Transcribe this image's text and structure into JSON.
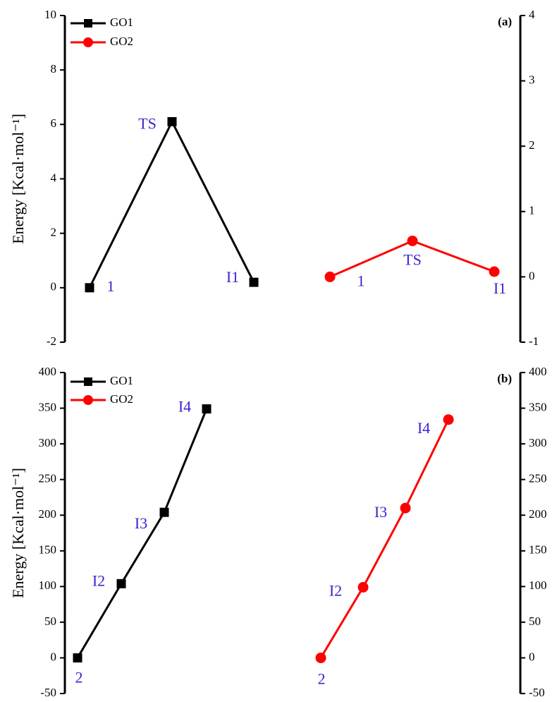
{
  "chart_data": [
    {
      "type": "line",
      "panel_label": "(a)",
      "ylabel": "Energy [Kcal·mol⁻¹]",
      "categories": [
        null,
        null,
        null,
        null,
        null,
        null
      ],
      "series": [
        {
          "name": "GO1",
          "color": "#000000",
          "marker": "square",
          "values": [
            0,
            6.1,
            0.2,
            null,
            null,
            null
          ],
          "point_labels": [
            "1",
            "TS",
            "I1",
            null,
            null,
            null
          ]
        },
        {
          "name": "GO2",
          "color": "#ff0000",
          "marker": "circle",
          "axis": "y2",
          "values": [
            null,
            null,
            null,
            0,
            0.55,
            0.08
          ],
          "point_labels": [
            null,
            null,
            null,
            "1",
            "TS",
            "I1"
          ]
        }
      ],
      "ylim": [
        -2,
        10
      ],
      "yticks": [
        -2,
        0,
        2,
        4,
        6,
        8,
        10
      ],
      "y2lim": [
        -1,
        4
      ],
      "y2ticks": [
        -1,
        0,
        1,
        2,
        3,
        4
      ],
      "legend": "upper left"
    },
    {
      "type": "line",
      "panel_label": "(b)",
      "ylabel": "Energy [Kcal·mol⁻¹]",
      "categories": [
        null,
        null,
        null,
        null,
        null,
        null,
        null,
        null
      ],
      "series": [
        {
          "name": "GO1",
          "color": "#000000",
          "marker": "square",
          "values": [
            0,
            104,
            204,
            349,
            null,
            null,
            null,
            null
          ],
          "point_labels": [
            "2",
            "I2",
            "I3",
            "I4",
            null,
            null,
            null,
            null
          ]
        },
        {
          "name": "GO2",
          "color": "#ff0000",
          "marker": "circle",
          "axis": "y2",
          "values": [
            null,
            null,
            null,
            null,
            0,
            99,
            210,
            334
          ],
          "point_labels": [
            null,
            null,
            null,
            null,
            "2",
            "I2",
            "I3",
            "I4"
          ]
        }
      ],
      "ylim": [
        -50,
        400
      ],
      "yticks": [
        -50,
        0,
        50,
        100,
        150,
        200,
        250,
        300,
        350,
        400
      ],
      "y2lim": [
        -50,
        400
      ],
      "y2ticks": [
        -50,
        0,
        50,
        100,
        150,
        200,
        250,
        300,
        350,
        400
      ],
      "legend": "upper left"
    }
  ]
}
